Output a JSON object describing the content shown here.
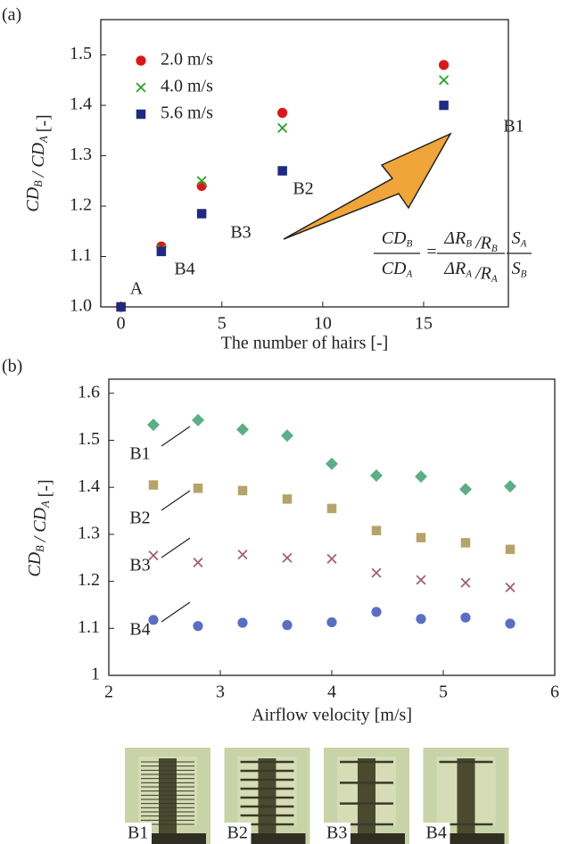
{
  "chart_data": [
    {
      "type": "scatter",
      "panel": "(a)",
      "xlabel": "The number of hairs [-]",
      "ylabel": [
        [
          "CD",
          "B"
        ],
        [
          "/ CD",
          "A"
        ],
        [
          "[-]"
        ]
      ],
      "x": [
        0,
        2,
        4,
        8,
        16
      ],
      "series": [
        {
          "name": "2.0 m/s",
          "color": "#d7191c",
          "marker": "circle",
          "values": [
            1.0,
            1.12,
            1.24,
            1.385,
            1.48
          ]
        },
        {
          "name": "4.0 m/s",
          "color": "#2ca02c",
          "marker": "x",
          "values": [
            1.0,
            1.115,
            1.25,
            1.355,
            1.45
          ]
        },
        {
          "name": "5.6 m/s",
          "color": "#1f2a80",
          "marker": "square",
          "values": [
            1.0,
            1.11,
            1.185,
            1.27,
            1.4
          ]
        }
      ],
      "xlim": [
        -1,
        19.2
      ],
      "xticks": [
        0,
        5,
        10,
        15
      ],
      "ylim": [
        1.0,
        1.57
      ],
      "yticks": [
        {
          "value": 1.0,
          "label": "1.0"
        },
        1.1,
        1.2,
        1.3,
        1.4,
        1.5
      ],
      "legend": "upper left",
      "annotations": [
        "A",
        "B4",
        "B3",
        "B2",
        "B1"
      ],
      "formula": {
        "lhs": {
          "num": [
            [
              "CD",
              "B"
            ]
          ],
          "den": [
            [
              "CD",
              "A"
            ]
          ]
        },
        "eq": "=",
        "mid": {
          "num": [
            [
              "ΔR",
              "B"
            ],
            [
              "/R",
              "B"
            ]
          ],
          "den": [
            [
              "ΔR",
              "A"
            ],
            [
              "/R",
              "A"
            ]
          ]
        },
        "rhs": {
          "num": [
            [
              "S",
              "A"
            ]
          ],
          "den": [
            [
              "S",
              "B"
            ]
          ]
        }
      }
    },
    {
      "type": "scatter",
      "panel": "(b)",
      "xlabel": "Airflow velocity [m/s]",
      "ylabel": [
        [
          "CD",
          "B"
        ],
        [
          "/ CD",
          "A"
        ],
        [
          "[-]"
        ]
      ],
      "x": [
        2.4,
        2.8,
        3.2,
        3.6,
        4.0,
        4.4,
        4.8,
        5.2,
        5.6
      ],
      "series": [
        {
          "name": "B1",
          "color": "#5cae86",
          "marker": "diamond",
          "values": [
            1.533,
            1.543,
            1.523,
            1.51,
            1.45,
            1.425,
            1.423,
            1.396,
            1.402
          ]
        },
        {
          "name": "B2",
          "color": "#b5a46a",
          "marker": "square",
          "values": [
            1.405,
            1.398,
            1.393,
            1.375,
            1.355,
            1.308,
            1.293,
            1.282,
            1.268
          ]
        },
        {
          "name": "B3",
          "color": "#a0607a",
          "marker": "x",
          "values": [
            1.255,
            1.24,
            1.257,
            1.25,
            1.248,
            1.218,
            1.203,
            1.197,
            1.187
          ]
        },
        {
          "name": "B4",
          "color": "#5a6ec4",
          "marker": "circle",
          "values": [
            1.118,
            1.105,
            1.112,
            1.107,
            1.113,
            1.135,
            1.12,
            1.123,
            1.11
          ]
        }
      ],
      "xlim": [
        2,
        6
      ],
      "xticks": [
        2,
        3,
        4,
        5,
        6
      ],
      "ylim": [
        1,
        1.63
      ],
      "yticks": [
        1,
        1.1,
        1.2,
        1.3,
        1.4,
        1.5,
        1.6
      ]
    }
  ],
  "photos": {
    "labels": [
      "B1",
      "B2",
      "B3",
      "B4"
    ]
  }
}
